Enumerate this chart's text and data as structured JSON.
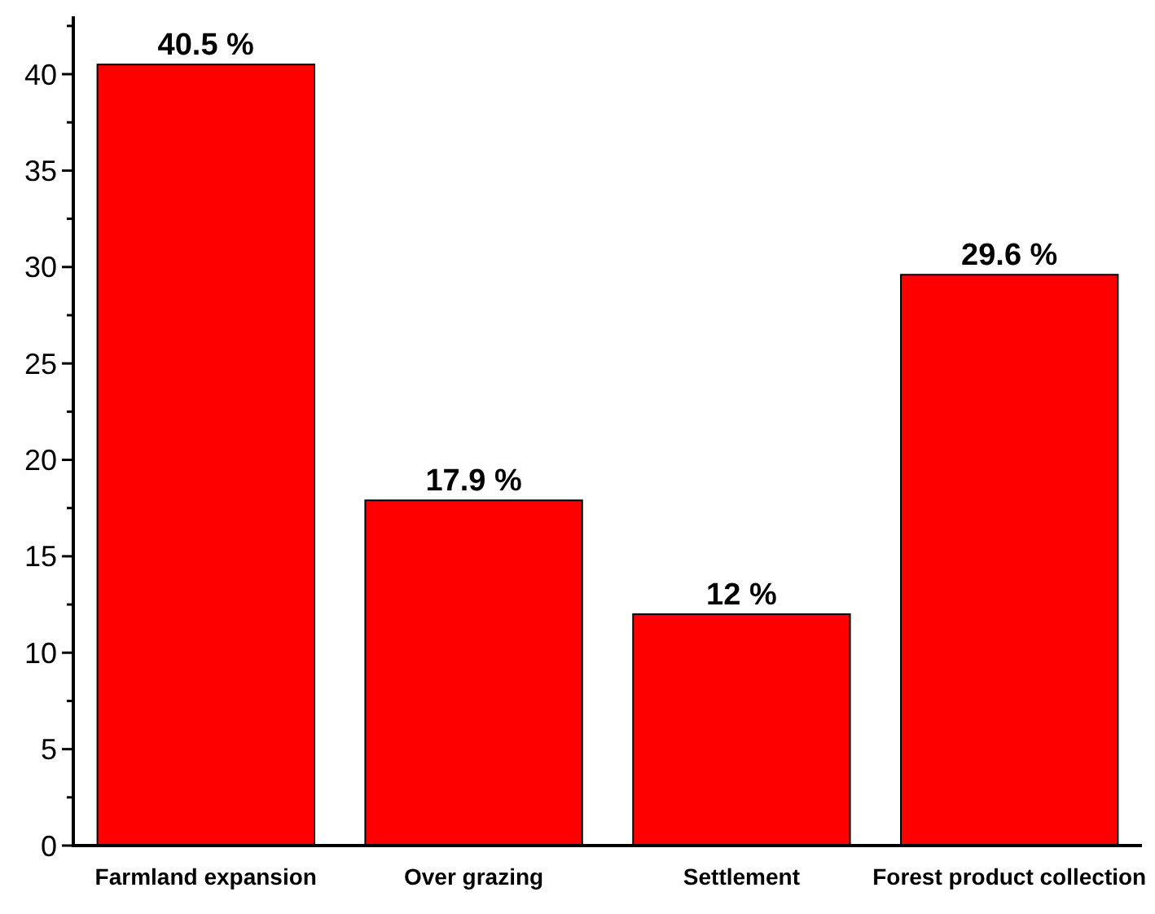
{
  "chart_data": {
    "type": "bar",
    "categories": [
      "Farmland expansion",
      "Over grazing",
      "Settlement",
      "Forest product collection"
    ],
    "values": [
      40.5,
      17.9,
      12,
      29.6
    ],
    "value_labels": [
      "40.5 %",
      "17.9 %",
      "12 %",
      "29.6 %"
    ],
    "color": "#ff0000",
    "ylim": [
      0,
      43
    ],
    "yticks": [
      0,
      {
        "value": 2.5,
        "label": null
      },
      5,
      {
        "value": 7.5,
        "label": null
      },
      10,
      {
        "value": 12.5,
        "label": null
      },
      15,
      {
        "value": 17.5,
        "label": null
      },
      20,
      {
        "value": 22.5,
        "label": null
      },
      25,
      {
        "value": 27.5,
        "label": null
      },
      30,
      {
        "value": 32.5,
        "label": null
      },
      35,
      {
        "value": 37.5,
        "label": null
      },
      40,
      {
        "value": 42.5,
        "label": null
      }
    ],
    "grid": false
  }
}
